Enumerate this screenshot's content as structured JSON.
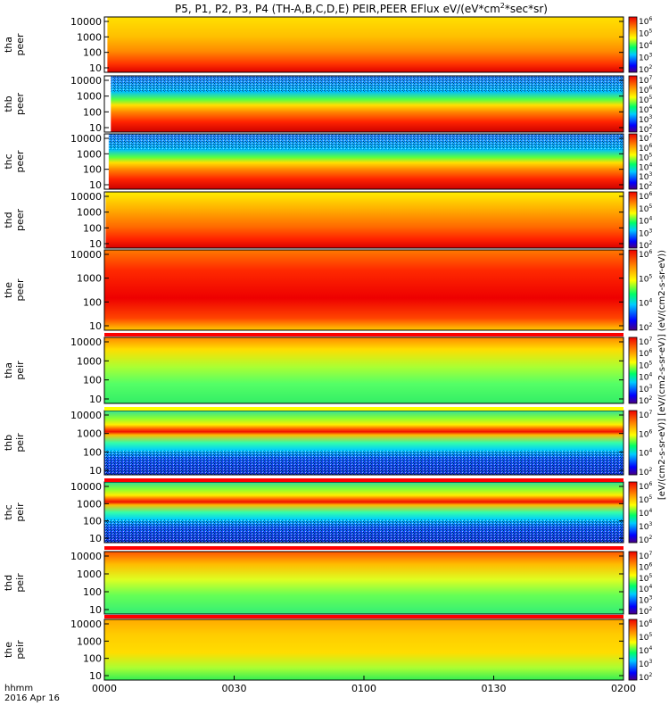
{
  "chart_data": {
    "type": "heatmap",
    "title": "P5, P1, P2, P3, P4 (TH-A,B,C,D,E) PEIR,PEER EFlux eV/(eV*cm",
    "title_sup": "2",
    "title_end": "*sec*sr)",
    "x_axis": {
      "ticks": [
        "0000",
        "0030",
        "0100",
        "0130",
        "0200"
      ],
      "label_line1": "hhmm",
      "label_line2": "2016 Apr 16"
    },
    "y_ticks": [
      "10000",
      "1000",
      "100",
      "10"
    ],
    "colorbar_label": "[eV/(cm2-s-sr-eV)] [eV/(cm2-s-sr-eV)] (eV/(cm2-s-sr-eV))",
    "panels": [
      {
        "probe": "tha",
        "instrument": "peer",
        "cb_ticks": [
          "10",
          "10",
          "10",
          "10",
          "10"
        ],
        "cb_exp": [
          "6",
          "5",
          "4",
          "3",
          "2"
        ],
        "gap_end": 0.7
      },
      {
        "probe": "thb",
        "instrument": "peer",
        "cb_ticks": [
          "10",
          "10",
          "10",
          "10",
          "10",
          "10"
        ],
        "cb_exp": [
          "7",
          "6",
          "5",
          "4",
          "3",
          "2"
        ],
        "gap_end": 1.5
      },
      {
        "probe": "thc",
        "instrument": "peer",
        "cb_ticks": [
          "10",
          "10",
          "10",
          "10",
          "10",
          "10"
        ],
        "cb_exp": [
          "7",
          "6",
          "5",
          "4",
          "3",
          "2"
        ],
        "gap_end": 1.0
      },
      {
        "probe": "thd",
        "instrument": "peer",
        "cb_ticks": [
          "10",
          "10",
          "10",
          "10",
          "10"
        ],
        "cb_exp": [
          "6",
          "5",
          "4",
          "3",
          "2"
        ],
        "gap_end": 0.3
      },
      {
        "probe": "the",
        "instrument": "peer",
        "cb_ticks": [
          "10",
          "10",
          "10",
          "10"
        ],
        "cb_exp": [
          "6",
          "5",
          "4",
          "2"
        ],
        "gap_end": 0
      },
      {
        "probe": "tha",
        "instrument": "peir",
        "cb_ticks": [
          "10",
          "10",
          "10",
          "10",
          "10",
          "10"
        ],
        "cb_exp": [
          "7",
          "6",
          "5",
          "4",
          "3",
          "2"
        ],
        "gap_end": 0
      },
      {
        "probe": "thb",
        "instrument": "peir",
        "cb_ticks": [
          "10",
          "10",
          "10",
          "10"
        ],
        "cb_exp": [
          "7",
          "6",
          "4",
          "2"
        ],
        "gap_end": 0
      },
      {
        "probe": "thc",
        "instrument": "peir",
        "cb_ticks": [
          "10",
          "10",
          "10",
          "10",
          "10"
        ],
        "cb_exp": [
          "6",
          "5",
          "4",
          "3",
          "2"
        ],
        "gap_end": 0
      },
      {
        "probe": "thd",
        "instrument": "peir",
        "cb_ticks": [
          "10",
          "10",
          "10",
          "10",
          "10",
          "10"
        ],
        "cb_exp": [
          "7",
          "6",
          "5",
          "4",
          "3",
          "2"
        ],
        "gap_end": 0
      },
      {
        "probe": "the",
        "instrument": "peir",
        "cb_ticks": [
          "10",
          "10",
          "10",
          "10",
          "10"
        ],
        "cb_exp": [
          "6",
          "5",
          "4",
          "3",
          "2"
        ],
        "gap_end": 0
      }
    ]
  }
}
